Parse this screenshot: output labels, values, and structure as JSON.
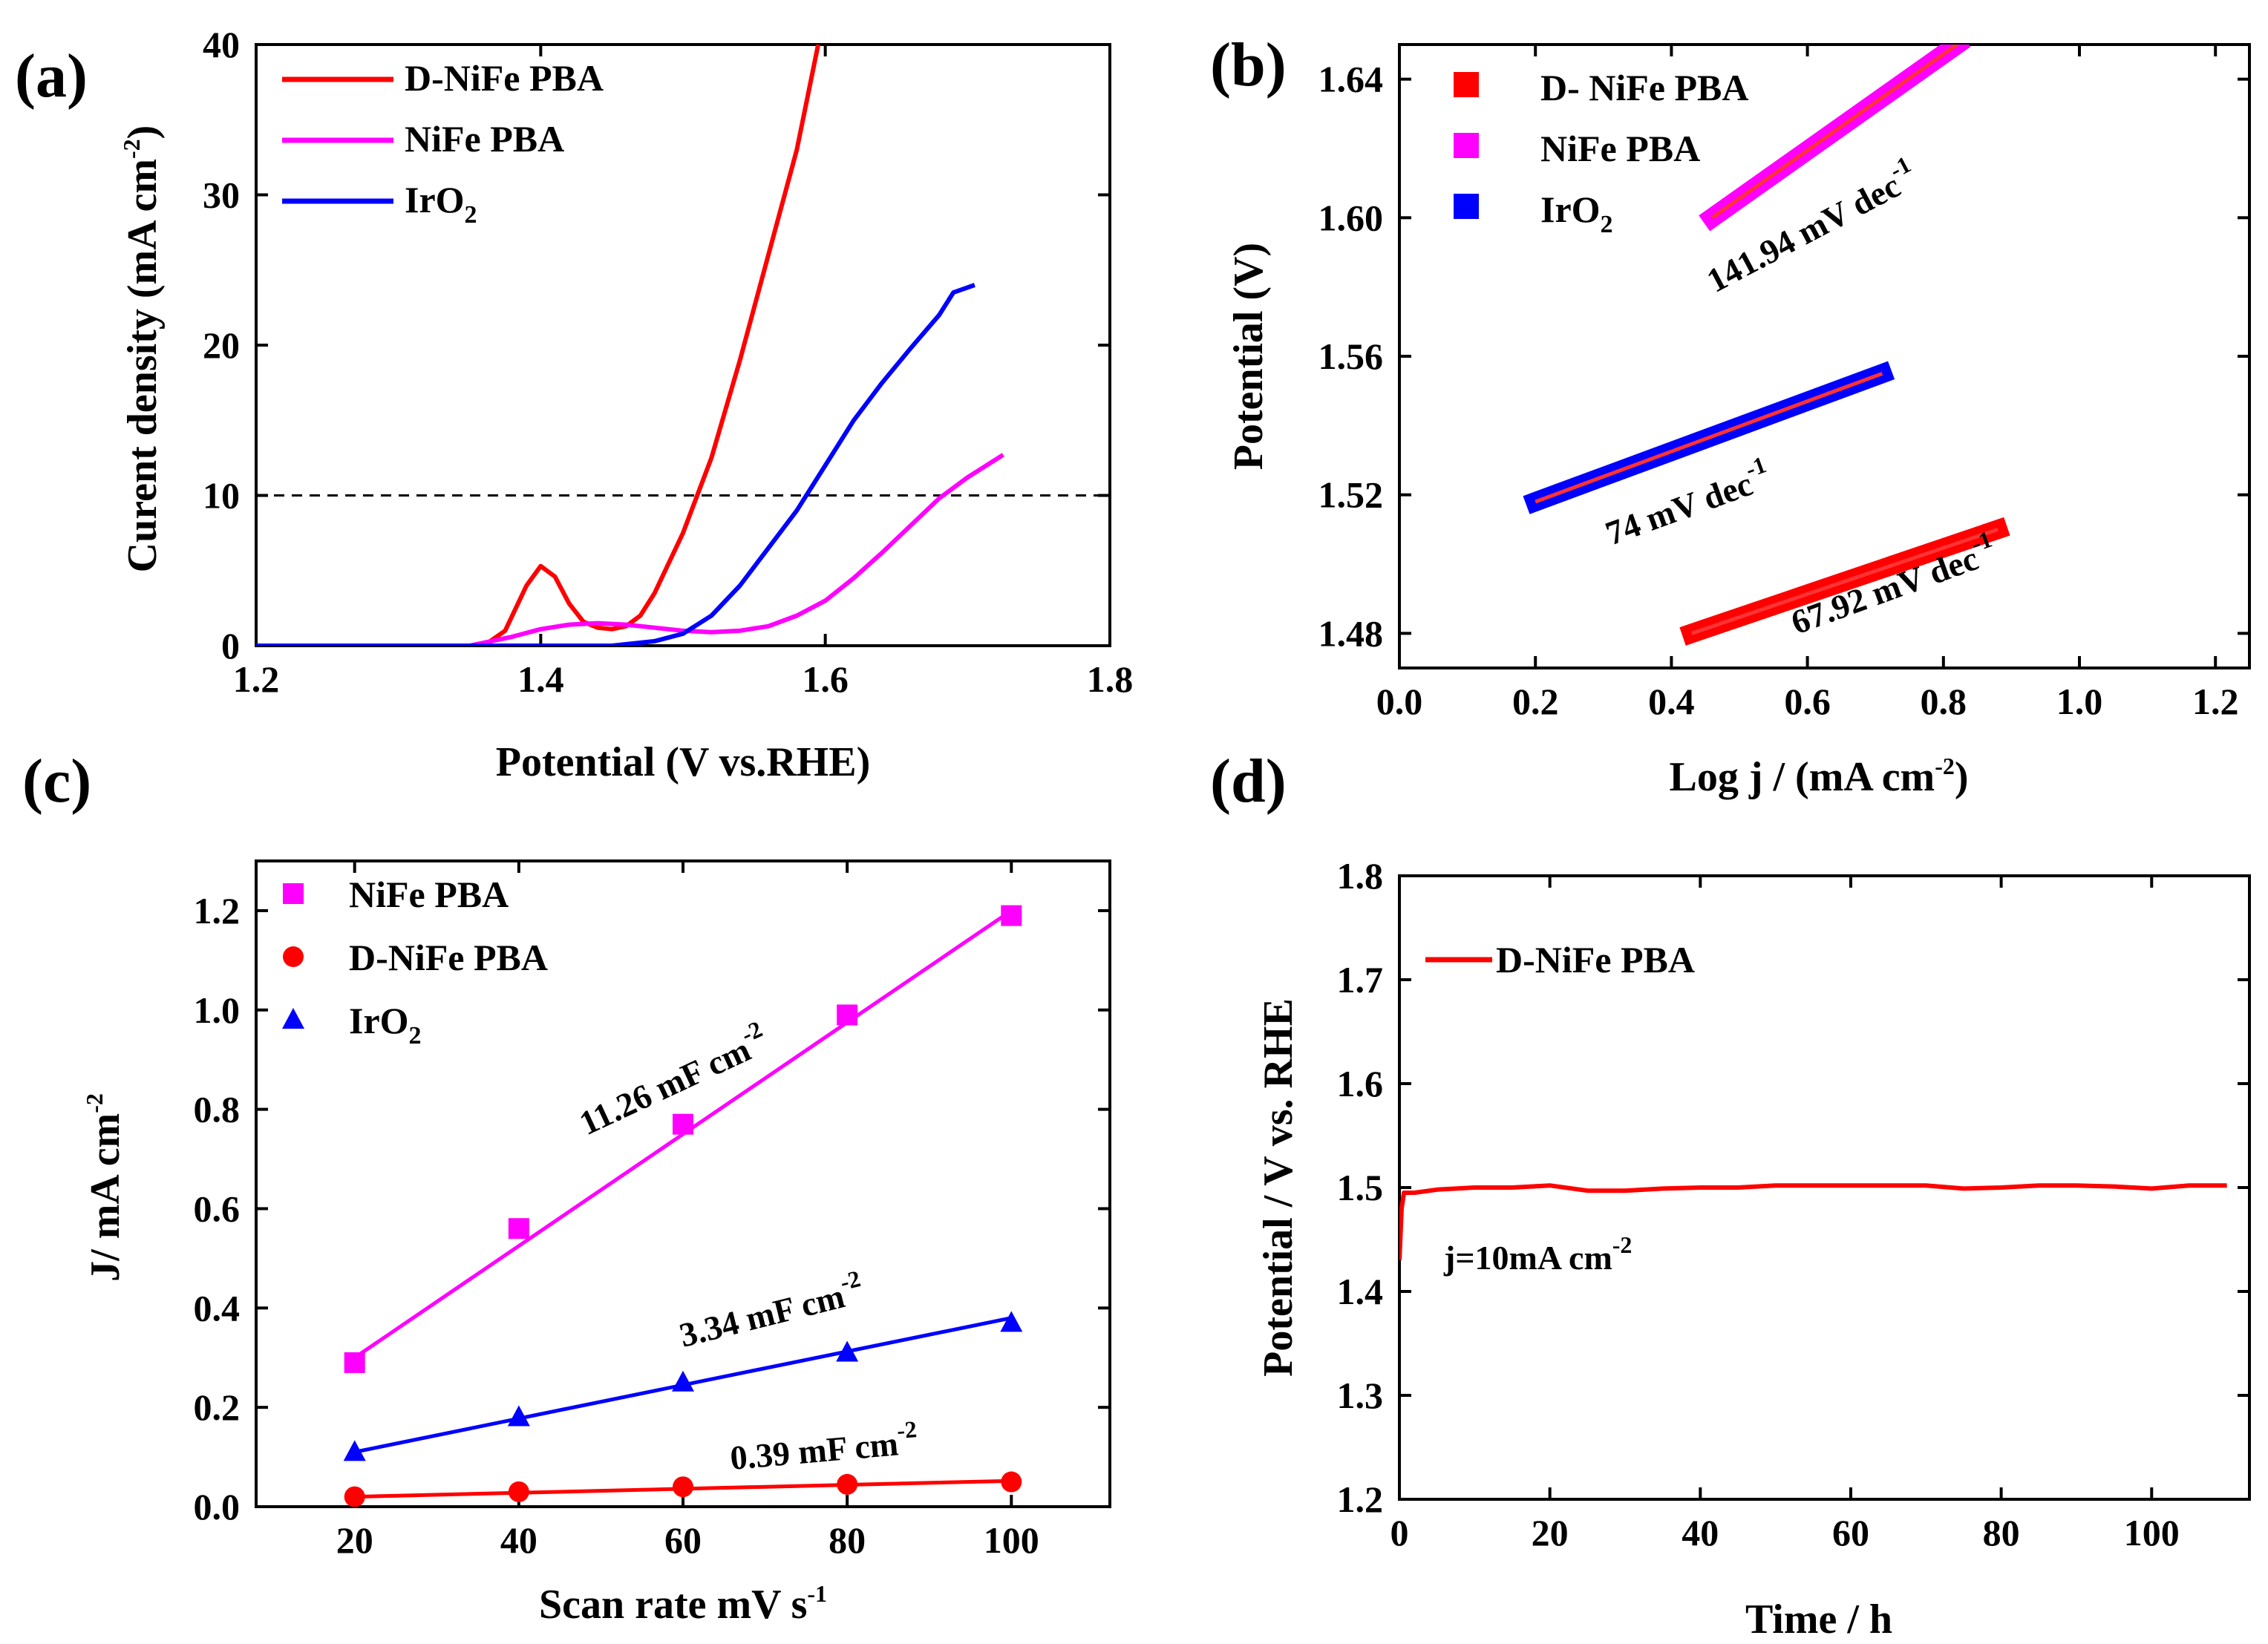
{
  "colors": {
    "d_nife": "#ff0000",
    "nife": "#ff00ff",
    "iro2": "#0000ff",
    "fit_line": "#ff3333",
    "axis": "#000000"
  },
  "chart_data": [
    {
      "panel": "(a)",
      "type": "line",
      "xlabel": "Potential (V vs.RHE)",
      "ylabel": "Curent density (mA cm",
      "ylabel_sup": "-2",
      "ylabel_close": ")",
      "xlim": [
        1.2,
        1.8
      ],
      "ylim": [
        0,
        40
      ],
      "xticks": [
        1.2,
        1.4,
        1.6,
        1.8
      ],
      "xtick_labels": [
        "1.2",
        "1.4",
        "1.6",
        "1.8"
      ],
      "yticks": [
        0,
        10,
        20,
        30,
        40
      ],
      "ytick_labels": [
        "0",
        "10",
        "20",
        "30",
        "40"
      ],
      "reference_line": {
        "y": 10,
        "style": "dashed"
      },
      "legend": {
        "placement": "top-left"
      },
      "series": [
        {
          "name": "D-NiFe PBA",
          "name_sub": "",
          "color": "#ff0000",
          "x": [
            1.2,
            1.36,
            1.375,
            1.39,
            1.4,
            1.41,
            1.42,
            1.43,
            1.44,
            1.45,
            1.46,
            1.47,
            1.48,
            1.5,
            1.52,
            1.54,
            1.56,
            1.58,
            1.595
          ],
          "y": [
            0,
            0,
            1.0,
            4.0,
            5.3,
            4.6,
            2.8,
            1.6,
            1.2,
            1.1,
            1.3,
            2.0,
            3.5,
            7.5,
            12.5,
            19,
            26,
            33,
            40
          ]
        },
        {
          "name": "NiFe PBA",
          "name_sub": "",
          "color": "#ff00ff",
          "x": [
            1.2,
            1.35,
            1.38,
            1.4,
            1.42,
            1.44,
            1.46,
            1.48,
            1.5,
            1.52,
            1.54,
            1.56,
            1.58,
            1.6,
            1.62,
            1.64,
            1.66,
            1.68,
            1.7,
            1.725
          ],
          "y": [
            0,
            0,
            0.6,
            1.1,
            1.4,
            1.5,
            1.4,
            1.2,
            1.0,
            0.9,
            1.0,
            1.3,
            2.0,
            3.0,
            4.5,
            6.2,
            8.0,
            9.8,
            11.2,
            12.7
          ]
        },
        {
          "name": "IrO",
          "name_sub": "2",
          "color": "#0000ff",
          "x": [
            1.2,
            1.45,
            1.48,
            1.5,
            1.52,
            1.54,
            1.56,
            1.58,
            1.6,
            1.62,
            1.64,
            1.66,
            1.68,
            1.69,
            1.705
          ],
          "y": [
            0,
            0,
            0.3,
            0.8,
            2.0,
            4.0,
            6.5,
            9.0,
            12.0,
            15.0,
            17.5,
            19.8,
            22.0,
            23.5,
            24.0
          ]
        }
      ]
    },
    {
      "panel": "(b)",
      "type": "scatter",
      "xlabel": "Log j / (mA cm",
      "xlabel_sup": "-2",
      "xlabel_close": ")",
      "ylabel": "Potential (V)",
      "xlim": [
        0.0,
        1.25
      ],
      "ylim": [
        1.47,
        1.65
      ],
      "xticks": [
        0.0,
        0.2,
        0.4,
        0.6,
        0.8,
        1.0,
        1.2
      ],
      "xtick_labels": [
        "0.0",
        "0.2",
        "0.4",
        "0.6",
        "0.8",
        "1.0",
        "1.2"
      ],
      "yticks": [
        1.48,
        1.52,
        1.56,
        1.6,
        1.64
      ],
      "ytick_labels": [
        "1.48",
        "1.52",
        "1.56",
        "1.60",
        "1.64"
      ],
      "legend": {
        "placement": "top-left"
      },
      "series": [
        {
          "name": "D- NiFe PBA",
          "name_sub": "",
          "color": "#ff0000",
          "x_range": [
            0.43,
            0.88
          ],
          "y_range": [
            1.48,
            1.51
          ],
          "slope_label": "67.92 mV dec",
          "slope_sup": "-1"
        },
        {
          "name": "NiFe PBA",
          "name_sub": "",
          "color": "#ff00ff",
          "x_range": [
            0.46,
            0.82
          ],
          "y_range": [
            1.6,
            1.65
          ],
          "slope_label": "141.94 mV dec",
          "slope_sup": "-1"
        },
        {
          "name": "IrO",
          "name_sub": "2",
          "color": "#0000ff",
          "x_range": [
            0.2,
            0.71
          ],
          "y_range": [
            1.518,
            1.555
          ],
          "slope_label": "74 mV dec",
          "slope_sup": "-1"
        }
      ]
    },
    {
      "panel": "(c)",
      "type": "scatter",
      "xlabel": "Scan rate mV s",
      "xlabel_sup": "-1",
      "ylabel": "J/ mA cm",
      "ylabel_sup": "-2",
      "xlim": [
        8,
        112
      ],
      "ylim": [
        0.0,
        1.3
      ],
      "xticks": [
        20,
        40,
        60,
        80,
        100
      ],
      "xtick_labels": [
        "20",
        "40",
        "60",
        "80",
        "100"
      ],
      "yticks": [
        0.0,
        0.2,
        0.4,
        0.6,
        0.8,
        1.0,
        1.2
      ],
      "ytick_labels": [
        "0.0",
        "0.2",
        "0.4",
        "0.6",
        "0.8",
        "1.0",
        "1.2"
      ],
      "legend": {
        "placement": "top-left"
      },
      "x": [
        20,
        40,
        60,
        80,
        100
      ],
      "series": [
        {
          "name": "NiFe PBA",
          "name_sub": "",
          "marker": "square",
          "color": "#ff00ff",
          "values": [
            0.29,
            0.56,
            0.77,
            0.99,
            1.19
          ],
          "fit": [
            0.3,
            1.2
          ],
          "slope_label": "11.26 mF cm",
          "slope_sup": "-2"
        },
        {
          "name": "D-NiFe PBA",
          "name_sub": "",
          "marker": "circle",
          "color": "#ff0000",
          "values": [
            0.02,
            0.03,
            0.04,
            0.045,
            0.05
          ],
          "fit": [
            0.02,
            0.052
          ],
          "slope_label": "0.39 mF cm",
          "slope_sup": "-2"
        },
        {
          "name": "IrO",
          "name_sub": "2",
          "marker": "triangle",
          "color": "#0000ff",
          "values": [
            0.11,
            0.18,
            0.25,
            0.31,
            0.37
          ],
          "fit": [
            0.11,
            0.38
          ],
          "slope_label": "3.34 mF cm",
          "slope_sup": "-2"
        }
      ]
    },
    {
      "panel": "(d)",
      "type": "line",
      "xlabel": "Time / h",
      "ylabel": "Potential / V vs. RHE",
      "xlim": [
        0,
        113
      ],
      "ylim": [
        1.2,
        1.8
      ],
      "xticks": [
        0,
        20,
        40,
        60,
        80,
        100
      ],
      "xtick_labels": [
        "0",
        "20",
        "40",
        "60",
        "80",
        "100"
      ],
      "yticks": [
        1.2,
        1.3,
        1.4,
        1.5,
        1.6,
        1.7,
        1.8
      ],
      "ytick_labels": [
        "1.2",
        "1.3",
        "1.4",
        "1.5",
        "1.6",
        "1.7",
        "1.8"
      ],
      "legend": {
        "placement": "top-left"
      },
      "annotation": {
        "text": "j=10mA cm",
        "sup": "-2"
      },
      "series": [
        {
          "name": "D-NiFe PBA",
          "name_sub": "",
          "color": "#ff0000",
          "x": [
            0,
            0.3,
            0.6,
            2,
            5,
            10,
            15,
            20,
            25,
            30,
            35,
            40,
            45,
            50,
            55,
            60,
            65,
            70,
            75,
            80,
            85,
            90,
            95,
            100,
            105,
            110
          ],
          "y": [
            1.43,
            1.48,
            1.495,
            1.495,
            1.498,
            1.5,
            1.5,
            1.502,
            1.497,
            1.497,
            1.499,
            1.5,
            1.5,
            1.502,
            1.502,
            1.502,
            1.502,
            1.502,
            1.499,
            1.5,
            1.502,
            1.502,
            1.501,
            1.499,
            1.502,
            1.502
          ]
        }
      ]
    }
  ]
}
